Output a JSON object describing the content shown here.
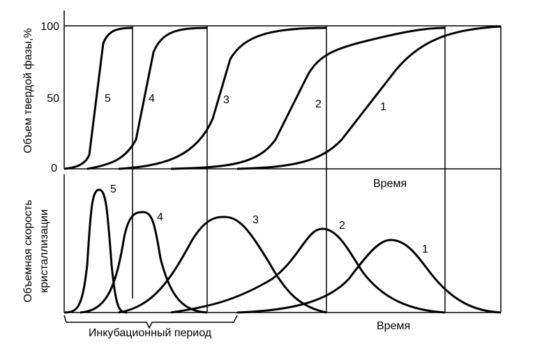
{
  "top_panel": {
    "y_label": "Объем твердой фазы,%",
    "y_ticks": [
      "100",
      "50",
      "0"
    ],
    "x_label": "Время",
    "curve_labels": [
      "5",
      "4",
      "3",
      "2",
      "1"
    ]
  },
  "bottom_panel": {
    "y_label_lines": [
      "Объемная скорость",
      "кристаллизации"
    ],
    "x_label": "Время",
    "curve_labels": [
      "5",
      "4",
      "3",
      "2",
      "1"
    ],
    "bracket_label": "Инкубационный период"
  }
}
